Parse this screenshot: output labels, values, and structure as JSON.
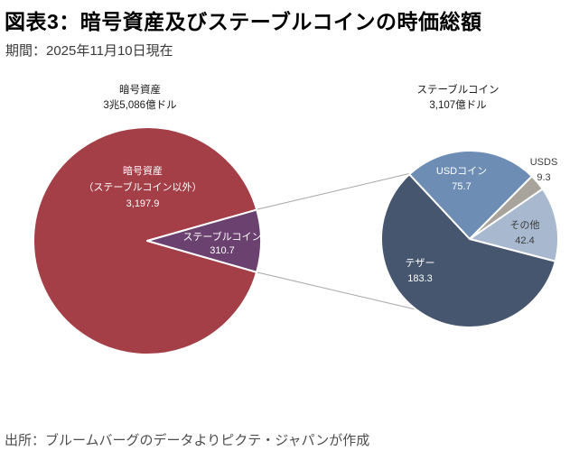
{
  "page": {
    "title": "図表3：暗号資産及びステーブルコインの時価総額",
    "subtitle": "期間：2025年11月10日現在",
    "source": "出所：ブルームバーグのデータよりピクテ・ジャパンが作成"
  },
  "colors": {
    "crypto_red": "#a43e47",
    "stablecoin_purple": "#6a416f",
    "tether_navy": "#45566e",
    "usdcoin_blue": "#6e8db4",
    "usds_gray": "#a8a39b",
    "other_lightblue": "#a7b8cf",
    "connector_gray": "#a6a6a6",
    "dark_label": "#3d3d3d"
  },
  "chart_data": [
    {
      "type": "pie",
      "id": "crypto-total",
      "title_lines": [
        "暗号資産",
        "3兆5,086億ドル"
      ],
      "unit": "億ドル",
      "total": 3508.6,
      "start_angle": 106,
      "slices": [
        {
          "id": "crypto-ex-stablecoin",
          "label": "暗号資産（ステーブルコイン以外）",
          "value": 3197.9,
          "value_label": "3,197.9",
          "color": "#a43e47",
          "label_color": "#ffffff",
          "label_lines": [
            "暗号資産",
            "（ステーブルコイン以外）",
            "3,197.9"
          ]
        },
        {
          "id": "stablecoin-wedge",
          "label": "ステーブルコイン",
          "value": 310.7,
          "value_label": "310.7",
          "color": "#6a416f",
          "label_color": "#ffffff",
          "label_lines": [
            "ステーブルコイン",
            "310.7"
          ]
        }
      ]
    },
    {
      "type": "pie",
      "id": "stablecoin-breakdown",
      "title_lines": [
        "ステーブルコイン",
        "3,107億ドル"
      ],
      "unit": "億ドル",
      "total": 310.7,
      "start_angle": -43,
      "slices": [
        {
          "id": "usd-coin",
          "label": "USDコイン",
          "value": 75.7,
          "value_label": "75.7",
          "color": "#6e8db4",
          "label_color": "#ffffff",
          "label_lines": [
            "USDコイン",
            "75.7"
          ]
        },
        {
          "id": "usds",
          "label": "USDS",
          "value": 9.3,
          "value_label": "9.3",
          "color": "#a8a39b",
          "label_color": "#3d3d3d",
          "label_lines": [
            "USDS",
            "9.3"
          ]
        },
        {
          "id": "other",
          "label": "その他",
          "value": 42.4,
          "value_label": "42.4",
          "color": "#a7b8cf",
          "label_color": "#3d3d3d",
          "label_lines": [
            "その他",
            "42.4"
          ]
        },
        {
          "id": "tether",
          "label": "テザー",
          "value": 183.3,
          "value_label": "183.3",
          "color": "#45566e",
          "label_color": "#ffffff",
          "label_lines": [
            "テザー",
            "183.3"
          ]
        }
      ]
    }
  ]
}
